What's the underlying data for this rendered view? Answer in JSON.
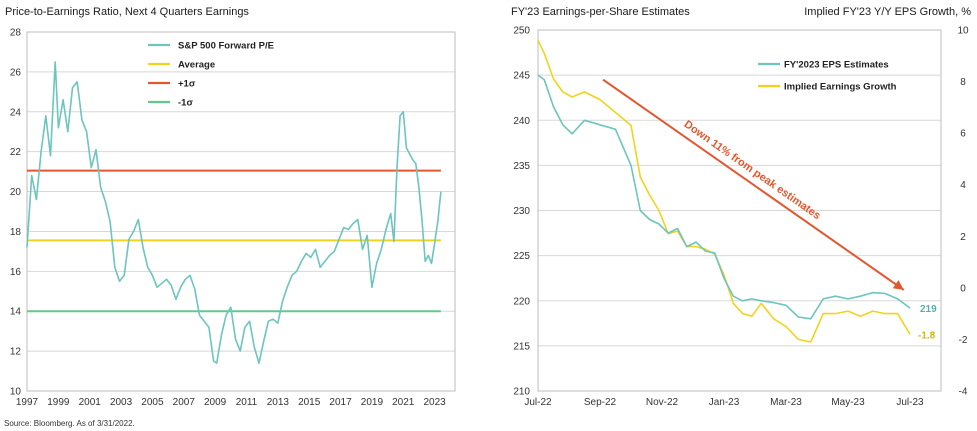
{
  "source": "Source: Bloomberg. As of 3/31/2022.",
  "colors": {
    "line": "#6cc5be",
    "yellow": "#f2d31c",
    "red": "#e4562d",
    "green": "#63c88b",
    "grid": "#d8d8d8",
    "frame": "#bdbdbd"
  },
  "chart_data": [
    {
      "type": "line",
      "title": "Price-to-Earnings Ratio, Next 4 Quarters Earnings",
      "ylim": [
        10,
        28
      ],
      "yticks": [
        10,
        12,
        14,
        16,
        18,
        20,
        22,
        24,
        26,
        28
      ],
      "xlim": [
        1997,
        2024.3
      ],
      "xticks": [
        1997,
        1999,
        2001,
        2003,
        2005,
        2007,
        2009,
        2011,
        2013,
        2015,
        2017,
        2019,
        2021,
        2023
      ],
      "grid": true,
      "legend_position": "top-center",
      "series": [
        {
          "name": "S&P 500 Forward P/E",
          "x": [
            1997.0,
            1997.3,
            1997.6,
            1997.9,
            1998.2,
            1998.5,
            1998.8,
            1999.0,
            1999.3,
            1999.6,
            1999.9,
            2000.2,
            2000.5,
            2000.8,
            2001.1,
            2001.4,
            2001.7,
            2002.0,
            2002.3,
            2002.6,
            2002.9,
            2003.2,
            2003.5,
            2003.8,
            2004.1,
            2004.4,
            2004.7,
            2005.0,
            2005.3,
            2005.6,
            2005.9,
            2006.2,
            2006.5,
            2006.8,
            2007.1,
            2007.4,
            2007.7,
            2008.0,
            2008.3,
            2008.6,
            2008.9,
            2009.1,
            2009.4,
            2009.7,
            2010.0,
            2010.3,
            2010.6,
            2010.9,
            2011.2,
            2011.5,
            2011.8,
            2012.1,
            2012.4,
            2012.7,
            2013.0,
            2013.3,
            2013.6,
            2013.9,
            2014.2,
            2014.5,
            2014.8,
            2015.1,
            2015.4,
            2015.7,
            2016.0,
            2016.3,
            2016.6,
            2016.9,
            2017.2,
            2017.5,
            2017.8,
            2018.1,
            2018.4,
            2018.7,
            2019.0,
            2019.3,
            2019.6,
            2019.9,
            2020.2,
            2020.4,
            2020.6,
            2020.8,
            2021.0,
            2021.2,
            2021.4,
            2021.6,
            2021.8,
            2022.0,
            2022.2,
            2022.4,
            2022.6,
            2022.8,
            2023.0,
            2023.2,
            2023.4
          ],
          "values": [
            17.2,
            20.8,
            19.6,
            22.0,
            23.8,
            21.8,
            26.5,
            23.2,
            24.6,
            23.0,
            25.2,
            25.5,
            23.6,
            23.0,
            21.2,
            22.1,
            20.2,
            19.5,
            18.5,
            16.2,
            15.5,
            15.8,
            17.6,
            18.0,
            18.6,
            17.2,
            16.2,
            15.8,
            15.2,
            15.4,
            15.6,
            15.3,
            14.6,
            15.2,
            15.6,
            15.8,
            15.1,
            13.8,
            13.5,
            13.2,
            11.5,
            11.4,
            12.8,
            13.8,
            14.2,
            12.6,
            12.0,
            13.2,
            13.5,
            12.2,
            11.4,
            12.5,
            13.5,
            13.6,
            13.4,
            14.5,
            15.2,
            15.8,
            16.0,
            16.5,
            16.9,
            16.7,
            17.1,
            16.2,
            16.5,
            16.8,
            17.0,
            17.6,
            18.2,
            18.1,
            18.4,
            18.6,
            17.1,
            17.8,
            15.2,
            16.4,
            17.1,
            18.1,
            18.9,
            17.5,
            21.2,
            23.8,
            24.0,
            22.2,
            21.9,
            21.6,
            21.4,
            20.2,
            18.5,
            16.5,
            16.8,
            16.4,
            17.4,
            18.5,
            20.0
          ]
        }
      ],
      "legend": [
        {
          "label": "S&P 500 Forward P/E",
          "color": "#6cc5be"
        },
        {
          "label": "Average",
          "color": "#f2d31c"
        },
        {
          "label": "+1σ",
          "color": "#e4562d"
        },
        {
          "label": "-1σ",
          "color": "#63c88b"
        }
      ],
      "reference_lines": [
        {
          "name": "Average",
          "value": 17.55,
          "color": "#f2d31c"
        },
        {
          "name": "+1σ",
          "value": 21.05,
          "color": "#e4562d"
        },
        {
          "name": "-1σ",
          "value": 14.0,
          "color": "#63c88b"
        }
      ]
    },
    {
      "type": "line",
      "title": "FY'23 Earnings-per-Share Estimates",
      "right_axis_title": "Implied FY'23 Y/Y EPS Growth, %",
      "ylim": [
        210,
        250
      ],
      "yticks": [
        210,
        215,
        220,
        225,
        230,
        235,
        240,
        245,
        250
      ],
      "y2lim": [
        -4,
        10
      ],
      "y2ticks": [
        -4,
        -2,
        0,
        2,
        4,
        6,
        8,
        10
      ],
      "xlim": [
        0,
        13
      ],
      "xtick_positions": [
        0,
        2,
        4,
        6,
        8,
        10,
        12
      ],
      "xticks": [
        "Jul-22",
        "Sep-22",
        "Nov-22",
        "Jan-23",
        "Mar-23",
        "May-23",
        "Jul-23"
      ],
      "grid": true,
      "legend_position": "top-right",
      "series": [
        {
          "name": "FY'2023 EPS Estimates",
          "axis": "left",
          "x": [
            0,
            0.2,
            0.5,
            0.8,
            1.1,
            1.5,
            2.0,
            2.5,
            3.0,
            3.3,
            3.6,
            3.9,
            4.2,
            4.5,
            4.8,
            5.1,
            5.4,
            5.7,
            6.0,
            6.3,
            6.6,
            6.9,
            7.2,
            7.6,
            8.0,
            8.4,
            8.8,
            9.2,
            9.6,
            10.0,
            10.4,
            10.8,
            11.2,
            11.6,
            12.0
          ],
          "values": [
            245,
            244.5,
            241.5,
            239.5,
            238.5,
            240,
            239.5,
            239,
            235,
            230,
            229,
            228.5,
            227.5,
            228,
            226,
            226.5,
            225.5,
            225.3,
            222.5,
            220.5,
            220,
            220.2,
            220,
            219.8,
            219.5,
            218.2,
            218,
            220.2,
            220.5,
            220.2,
            220.5,
            220.9,
            220.8,
            220.2,
            219.2
          ],
          "end_label": "219",
          "color": "#6cc5be"
        },
        {
          "name": "Implied Earnings Growth",
          "axis": "right",
          "x": [
            0,
            0.2,
            0.5,
            0.8,
            1.1,
            1.5,
            2.0,
            2.5,
            3.0,
            3.3,
            3.6,
            3.9,
            4.2,
            4.5,
            4.8,
            5.1,
            5.4,
            5.7,
            6.0,
            6.3,
            6.6,
            6.9,
            7.2,
            7.6,
            8.0,
            8.4,
            8.8,
            9.2,
            9.6,
            10.0,
            10.4,
            10.8,
            11.2,
            11.6,
            12.0
          ],
          "values": [
            9.6,
            9.1,
            8.1,
            7.6,
            7.4,
            7.6,
            7.3,
            6.8,
            6.3,
            4.3,
            3.6,
            3.0,
            2.1,
            2.2,
            1.6,
            1.6,
            1.5,
            1.3,
            0.5,
            -0.6,
            -1.0,
            -1.1,
            -0.6,
            -1.2,
            -1.5,
            -2.0,
            -2.1,
            -1.0,
            -1.0,
            -0.9,
            -1.1,
            -0.9,
            -1.0,
            -1.0,
            -1.8
          ],
          "end_label": "-1.8",
          "color": "#f2d31c"
        }
      ],
      "legend": [
        {
          "label": "FY'2023 EPS Estimates",
          "color": "#6cc5be"
        },
        {
          "label": "Implied Earnings Growth",
          "color": "#f2d31c"
        }
      ],
      "annotation": {
        "text": "Down 11% from peak estimates",
        "color": "#e4562d",
        "from": [
          2.1,
          244.5
        ],
        "to": [
          11.8,
          221.2
        ]
      }
    }
  ]
}
